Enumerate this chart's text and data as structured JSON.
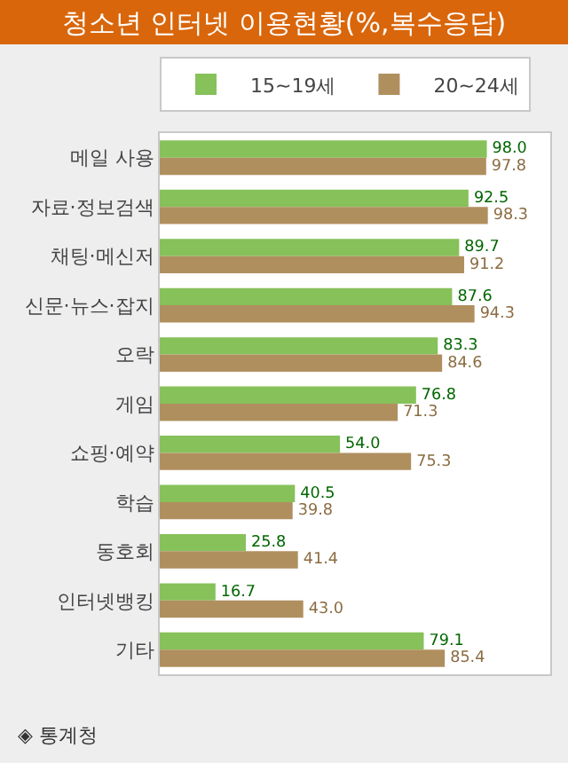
{
  "chart_data": {
    "type": "bar",
    "orientation": "horizontal",
    "title": "청소년 인터넷 이용현황(%,복수응답)",
    "categories": [
      "메일 사용",
      "자료·정보검색",
      "채팅·메신저",
      "신문·뉴스·잡지",
      "오락",
      "게임",
      "쇼핑·예약",
      "학습",
      "동호회",
      "인터넷뱅킹",
      "기타"
    ],
    "series": [
      {
        "name": "15~19세",
        "color": "#86c15a",
        "values": [
          98.0,
          92.5,
          89.7,
          87.6,
          83.3,
          76.8,
          54.0,
          40.5,
          25.8,
          16.7,
          79.1
        ],
        "value_labels": [
          "98.0",
          "92.5",
          "89.7",
          "87.6",
          "83.3",
          "76.8",
          "54.0",
          "40.5",
          "25.8",
          "16.7",
          "79.1"
        ]
      },
      {
        "name": "20~24세",
        "color": "#b08f5f",
        "values": [
          97.8,
          98.3,
          91.2,
          94.3,
          84.6,
          71.3,
          75.3,
          39.8,
          41.4,
          43.0,
          85.4
        ],
        "value_labels": [
          "97.8",
          "98.3",
          "91.2",
          "94.3",
          "84.6",
          "71.3",
          "75.3",
          "39.8",
          "41.4",
          "43.0",
          "85.4"
        ]
      }
    ],
    "xlim": [
      0,
      117
    ],
    "tick_labels": "y",
    "legend": "top left",
    "annotations": [
      "◈ 통계청"
    ]
  }
}
